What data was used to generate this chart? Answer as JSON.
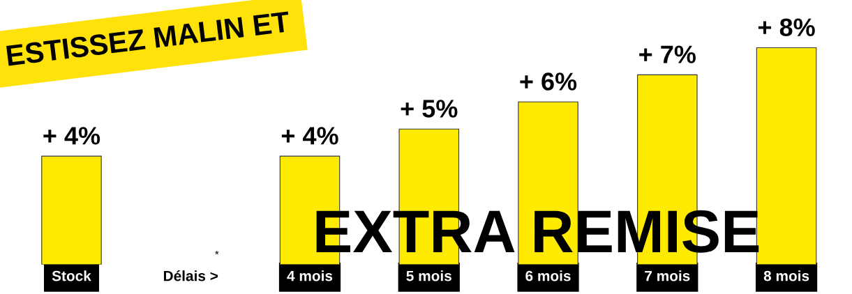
{
  "chart_data": {
    "type": "bar",
    "title": "ESTISSEZ MALIN ET",
    "categories": [
      "Stock",
      "Délais >",
      "4 mois",
      "5 mois",
      "6 mois",
      "7 mois",
      "8 mois"
    ],
    "values": [
      4,
      null,
      4,
      5,
      6,
      7,
      8
    ],
    "value_labels": [
      "+ 4%",
      null,
      "+ 4%",
      "+ 5%",
      "+ 6%",
      "+ 7%",
      "+ 8%"
    ],
    "color": "#ffeb00",
    "annotations": [
      "*",
      "EXTRA REMISE"
    ],
    "grid": false
  }
}
